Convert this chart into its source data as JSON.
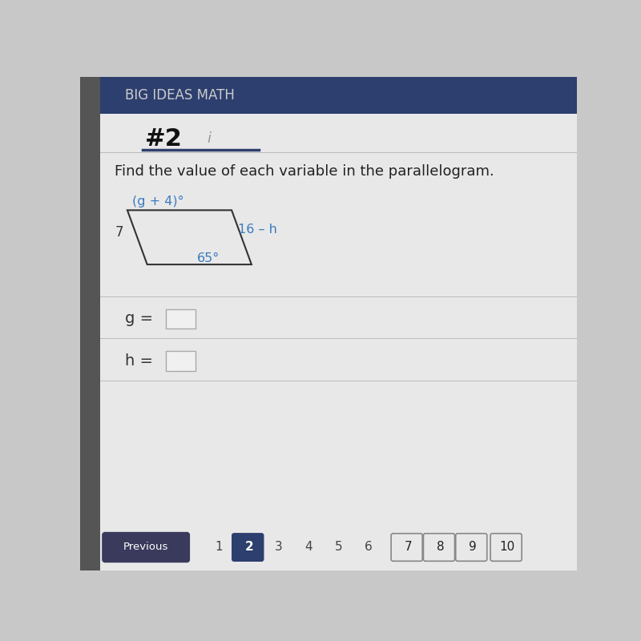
{
  "bg_color": "#d8d8d8",
  "header_color": "#2d3f6e",
  "header_text": "BIG IDEAS MATH",
  "header_text_color": "#cccccc",
  "header_font_size": 12,
  "problem_number": "#2",
  "problem_info": "i",
  "question_text": "Find the value of each variable in the parallelogram.",
  "label_top_left": "(g + 4)°",
  "label_top_left_color": "#3a7bbf",
  "label_left_side": "7",
  "label_left_side_color": "#333333",
  "label_right_side": "16 – h",
  "label_right_side_color": "#3a7bbf",
  "label_bottom_right": "65°",
  "label_bottom_right_color": "#3a7bbf",
  "var_g_label": "g =",
  "var_h_label": "h =",
  "box_color": "#f0f0f0",
  "box_border": "#aaaaaa",
  "nav_active": "2",
  "nav_active_color": "#2d3f6e",
  "nav_boxed": [
    "7",
    "8",
    "9",
    "10"
  ],
  "content_bg": "#c8c8c8",
  "main_bg": "#e8e8e8",
  "divider_color": "#2d3f6e",
  "left_strip_color": "#555555"
}
